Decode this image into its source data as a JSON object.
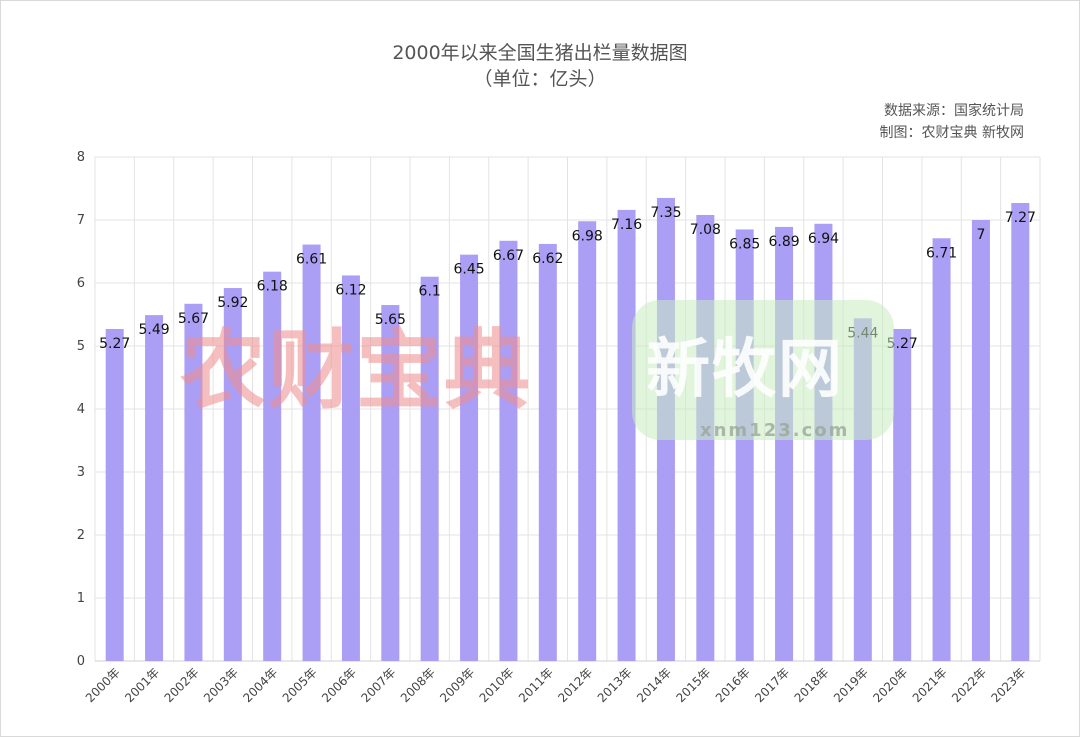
{
  "chart_data": {
    "type": "bar",
    "title": "2000年以来全国生猪出栏量数据图",
    "subtitle": "（单位：亿头）",
    "credits": [
      "数据来源：国家统计局",
      "制图：农财宝典 新牧网"
    ],
    "watermarks": [
      "农财宝典",
      "新牧网",
      "xnm123.com"
    ],
    "categories": [
      "2000年",
      "2001年",
      "2002年",
      "2003年",
      "2004年",
      "2005年",
      "2006年",
      "2007年",
      "2008年",
      "2009年",
      "2010年",
      "2011年",
      "2012年",
      "2013年",
      "2014年",
      "2015年",
      "2016年",
      "2017年",
      "2018年",
      "2019年",
      "2020年",
      "2021年",
      "2022年",
      "2023年"
    ],
    "values": [
      5.27,
      5.49,
      5.67,
      5.92,
      6.18,
      6.61,
      6.12,
      5.65,
      6.1,
      6.45,
      6.67,
      6.62,
      6.98,
      7.16,
      7.35,
      7.08,
      6.85,
      6.89,
      6.94,
      5.44,
      5.27,
      6.71,
      7,
      7.27
    ],
    "labels": [
      "5.27",
      "5.49",
      "5.67",
      "5.92",
      "6.18",
      "6.61",
      "6.12",
      "5.65",
      "6.1",
      "6.45",
      "6.67",
      "6.62",
      "6.98",
      "7.16",
      "7.35",
      "7.08",
      "6.85",
      "6.89",
      "6.94",
      "5.44",
      "5.27",
      "6.71",
      "7",
      "7.27"
    ],
    "ylim": [
      0,
      8
    ],
    "yticks": [
      0,
      1,
      2,
      3,
      4,
      5,
      6,
      7,
      8
    ],
    "grid": true,
    "bar_color": "#ab9ef5"
  }
}
